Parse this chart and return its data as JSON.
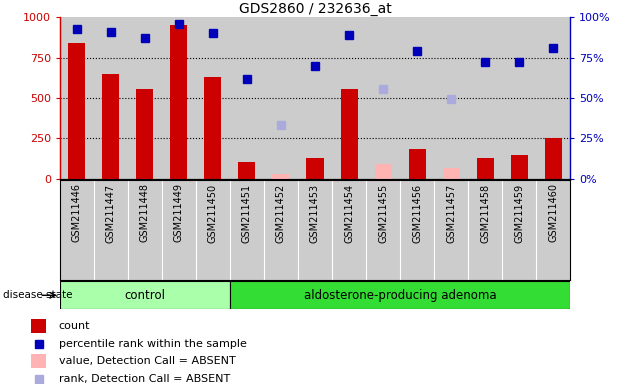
{
  "title": "GDS2860 / 232636_at",
  "samples": [
    "GSM211446",
    "GSM211447",
    "GSM211448",
    "GSM211449",
    "GSM211450",
    "GSM211451",
    "GSM211452",
    "GSM211453",
    "GSM211454",
    "GSM211455",
    "GSM211456",
    "GSM211457",
    "GSM211458",
    "GSM211459",
    "GSM211460"
  ],
  "n_control": 5,
  "bar_values": [
    840,
    650,
    555,
    950,
    630,
    100,
    null,
    130,
    555,
    null,
    185,
    null,
    130,
    145,
    250
  ],
  "bar_absent": [
    null,
    null,
    null,
    null,
    null,
    null,
    30,
    null,
    null,
    90,
    null,
    65,
    null,
    null,
    null
  ],
  "dot_values": [
    930,
    910,
    870,
    960,
    900,
    620,
    null,
    700,
    890,
    null,
    790,
    null,
    720,
    720,
    810
  ],
  "dot_absent": [
    null,
    null,
    null,
    null,
    null,
    null,
    335,
    null,
    null,
    555,
    null,
    495,
    null,
    null,
    null
  ],
  "ylim_left": [
    0,
    1000
  ],
  "ylim_right": [
    0,
    100
  ],
  "yticks_left": [
    0,
    250,
    500,
    750,
    1000
  ],
  "ytick_labels_left": [
    "0",
    "250",
    "500",
    "750",
    "1000"
  ],
  "yticks_right": [
    0,
    25,
    50,
    75,
    100
  ],
  "ytick_labels_right": [
    "0%",
    "25%",
    "50%",
    "75%",
    "100%"
  ],
  "bar_color": "#cc0000",
  "bar_absent_color": "#ffb3b3",
  "dot_color": "#0000bb",
  "dot_absent_color": "#aaaadd",
  "bg_color": "#cccccc",
  "control_color": "#aaffaa",
  "adenoma_color": "#33dd33",
  "legend_items": [
    {
      "label": "count",
      "color": "#cc0000",
      "type": "bar"
    },
    {
      "label": "percentile rank within the sample",
      "color": "#0000bb",
      "type": "dot"
    },
    {
      "label": "value, Detection Call = ABSENT",
      "color": "#ffb3b3",
      "type": "bar"
    },
    {
      "label": "rank, Detection Call = ABSENT",
      "color": "#aaaadd",
      "type": "dot"
    }
  ]
}
